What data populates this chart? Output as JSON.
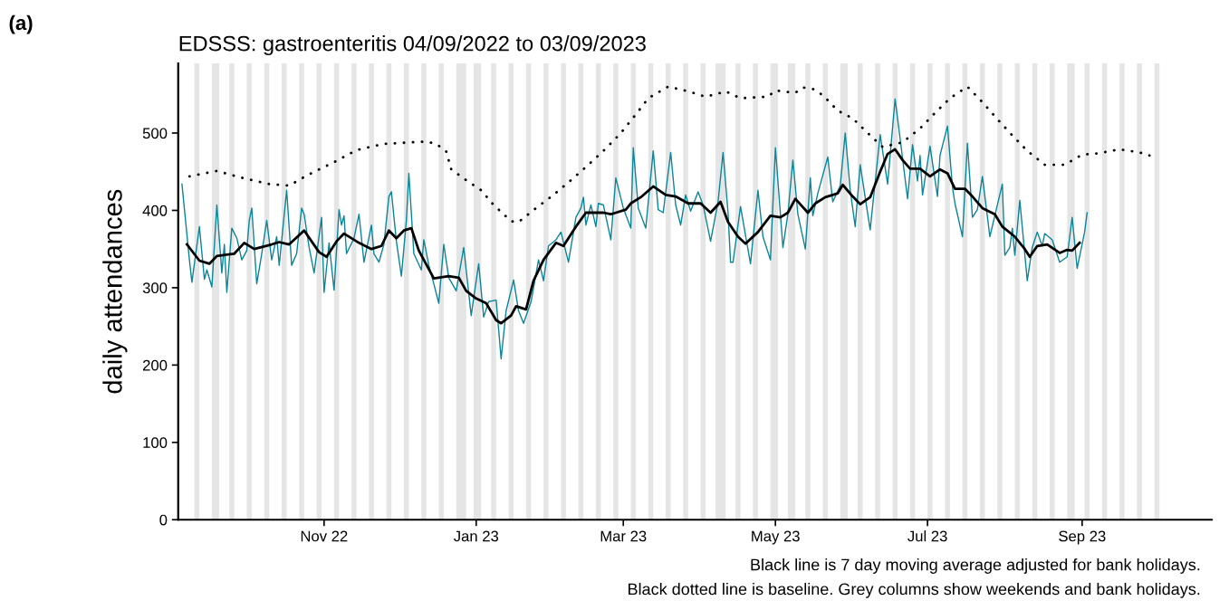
{
  "chart_data": {
    "type": "line",
    "title": "EDSSS: gastroenteritis 04/09/2022 to 03/09/2023",
    "ylabel": "daily attendances",
    "annotations": [
      "(a)",
      "Black line is 7 day moving average adjusted for bank holidays.",
      "Black dotted line is baseline. Grey columns show weekends and bank holidays."
    ],
    "xlim": [
      "2022-09-03T12:00",
      "2023-10-23"
    ],
    "xticks": [
      {
        "value": "2022-11-01",
        "label": "Nov 22"
      },
      {
        "value": "2023-01-01",
        "label": "Jan 23"
      },
      {
        "value": "2023-03-01",
        "label": "Mar 23"
      },
      {
        "value": "2023-05-01",
        "label": "May 23"
      },
      {
        "value": "2023-07-01",
        "label": "Jul 23"
      },
      {
        "value": "2023-09-01",
        "label": "Sep 23"
      }
    ],
    "ylim": [
      0,
      590
    ],
    "yticks": [
      0,
      100,
      200,
      300,
      400,
      500
    ],
    "grid": false,
    "series": [
      {
        "color": "#0a8599",
        "line_style": "solid",
        "x": [
          "2022-09-05",
          "2022-09-08",
          "2022-09-09",
          "2022-09-12",
          "2022-09-14",
          "2022-09-15",
          "2022-09-17",
          "2022-09-19",
          "2022-09-21",
          "2022-09-22",
          "2022-09-23",
          "2022-09-25",
          "2022-09-27",
          "2022-09-29",
          "2022-10-01",
          "2022-10-02",
          "2022-10-03",
          "2022-10-05",
          "2022-10-07",
          "2022-10-09",
          "2022-10-11",
          "2022-10-13",
          "2022-10-14",
          "2022-10-17",
          "2022-10-19",
          "2022-10-21",
          "2022-10-23",
          "2022-10-24",
          "2022-10-26",
          "2022-10-28",
          "2022-10-31",
          "2022-11-01",
          "2022-11-03",
          "2022-11-05",
          "2022-11-07",
          "2022-11-08",
          "2022-11-09",
          "2022-11-10",
          "2022-11-13",
          "2022-11-15",
          "2022-11-17",
          "2022-11-20",
          "2022-11-21",
          "2022-11-23",
          "2022-11-25",
          "2022-11-27",
          "2022-11-28",
          "2022-11-30",
          "2022-12-02",
          "2022-12-04",
          "2022-12-05",
          "2022-12-07",
          "2022-12-10",
          "2022-12-11",
          "2022-12-13",
          "2022-12-15",
          "2022-12-17",
          "2022-12-19",
          "2022-12-21",
          "2022-12-24",
          "2022-12-27",
          "2022-12-30",
          "2023-01-02",
          "2023-01-04",
          "2023-01-06",
          "2023-01-09",
          "2023-01-11",
          "2023-01-13",
          "2023-01-16",
          "2023-01-18",
          "2023-01-20",
          "2023-01-23",
          "2023-01-26",
          "2023-01-28",
          "2023-01-30",
          "2023-02-02",
          "2023-02-04",
          "2023-02-07",
          "2023-02-10",
          "2023-02-12",
          "2023-02-13",
          "2023-02-14",
          "2023-02-16",
          "2023-02-18",
          "2023-02-19",
          "2023-02-21",
          "2023-02-24",
          "2023-02-26",
          "2023-03-01",
          "2023-03-04",
          "2023-03-05",
          "2023-03-07",
          "2023-03-10",
          "2023-03-13",
          "2023-03-15",
          "2023-03-17",
          "2023-03-20",
          "2023-03-22",
          "2023-03-24",
          "2023-03-26",
          "2023-03-28",
          "2023-03-31",
          "2023-04-02",
          "2023-04-05",
          "2023-04-08",
          "2023-04-10",
          "2023-04-12",
          "2023-04-13",
          "2023-04-14",
          "2023-04-17",
          "2023-04-21",
          "2023-04-24",
          "2023-04-26",
          "2023-04-29",
          "2023-05-01",
          "2023-05-04",
          "2023-05-06",
          "2023-05-08",
          "2023-05-10",
          "2023-05-13",
          "2023-05-15",
          "2023-05-16",
          "2023-05-18",
          "2023-05-22",
          "2023-05-24",
          "2023-05-27",
          "2023-05-29",
          "2023-05-31",
          "2023-06-02",
          "2023-06-04",
          "2023-06-08",
          "2023-06-12",
          "2023-06-15",
          "2023-06-16",
          "2023-06-18",
          "2023-06-20",
          "2023-06-23",
          "2023-06-25",
          "2023-06-27",
          "2023-06-28",
          "2023-06-29",
          "2023-07-02",
          "2023-07-05",
          "2023-07-06",
          "2023-07-09",
          "2023-07-11",
          "2023-07-12",
          "2023-07-15",
          "2023-07-17",
          "2023-07-19",
          "2023-07-21",
          "2023-07-23",
          "2023-07-26",
          "2023-07-31",
          "2023-08-01",
          "2023-08-03",
          "2023-08-04",
          "2023-08-05",
          "2023-08-07",
          "2023-08-10",
          "2023-08-12",
          "2023-08-14",
          "2023-08-16",
          "2023-08-17",
          "2023-08-20",
          "2023-08-23",
          "2023-08-26",
          "2023-08-28",
          "2023-08-30",
          "2023-09-02",
          "2023-09-03"
        ],
        "values": [
          434,
          336,
          307,
          379,
          311,
          323,
          301,
          407,
          319,
          356,
          294,
          377,
          364,
          336,
          348,
          387,
          403,
          305,
          344,
          387,
          336,
          366,
          329,
          426,
          329,
          344,
          403,
          395,
          352,
          319,
          391,
          294,
          358,
          297,
          401,
          381,
          393,
          344,
          364,
          395,
          333,
          381,
          344,
          333,
          356,
          418,
          424,
          360,
          315,
          387,
          448,
          344,
          323,
          362,
          329,
          305,
          280,
          356,
          313,
          296,
          352,
          264,
          331,
          262,
          282,
          284,
          208,
          270,
          310,
          270,
          254,
          282,
          336,
          309,
          354,
          362,
          372,
          333,
          391,
          403,
          417,
          381,
          407,
          379,
          409,
          407,
          362,
          442,
          403,
          377,
          481,
          403,
          377,
          477,
          401,
          397,
          475,
          407,
          381,
          420,
          399,
          424,
          407,
          360,
          411,
          475,
          397,
          333,
          333,
          405,
          331,
          426,
          366,
          336,
          481,
          352,
          395,
          465,
          395,
          350,
          442,
          393,
          422,
          469,
          411,
          432,
          500,
          426,
          379,
          459,
          375,
          498,
          434,
          471,
          544,
          493,
          415,
          485,
          438,
          471,
          420,
          483,
          418,
          471,
          509,
          430,
          409,
          366,
          487,
          391,
          401,
          444,
          366,
          434,
          342,
          352,
          377,
          342,
          413,
          309,
          352,
          372,
          354,
          370,
          362,
          333,
          340,
          391,
          325,
          372,
          397
        ]
      },
      {
        "color": "#000000",
        "line_style": "solid",
        "x": [
          "2022-09-07",
          "2022-09-12",
          "2022-09-16",
          "2022-09-19",
          "2022-09-26",
          "2022-09-30",
          "2022-10-04",
          "2022-10-11",
          "2022-10-14",
          "2022-10-18",
          "2022-10-24",
          "2022-10-30",
          "2022-11-02",
          "2022-11-06",
          "2022-11-09",
          "2022-11-15",
          "2022-11-20",
          "2022-11-24",
          "2022-11-27",
          "2022-11-30",
          "2022-12-03",
          "2022-12-06",
          "2022-12-09",
          "2022-12-15",
          "2022-12-21",
          "2022-12-25",
          "2022-12-28",
          "2023-01-01",
          "2023-01-05",
          "2023-01-09",
          "2023-01-11",
          "2023-01-15",
          "2023-01-17",
          "2023-01-21",
          "2023-01-24",
          "2023-01-28",
          "2023-02-02",
          "2023-02-05",
          "2023-02-10",
          "2023-02-14",
          "2023-02-21",
          "2023-02-24",
          "2023-03-02",
          "2023-03-04",
          "2023-03-08",
          "2023-03-13",
          "2023-03-18",
          "2023-03-22",
          "2023-03-27",
          "2023-04-01",
          "2023-04-05",
          "2023-04-09",
          "2023-04-12",
          "2023-04-16",
          "2023-04-19",
          "2023-04-24",
          "2023-04-29",
          "2023-05-03",
          "2023-05-06",
          "2023-05-09",
          "2023-05-14",
          "2023-05-17",
          "2023-05-21",
          "2023-05-26",
          "2023-05-28",
          "2023-06-01",
          "2023-06-04",
          "2023-06-08",
          "2023-06-12",
          "2023-06-15",
          "2023-06-18",
          "2023-06-21",
          "2023-06-24",
          "2023-06-28",
          "2023-07-02",
          "2023-07-06",
          "2023-07-09",
          "2023-07-12",
          "2023-07-16",
          "2023-07-19",
          "2023-07-23",
          "2023-07-28",
          "2023-07-31",
          "2023-08-05",
          "2023-08-09",
          "2023-08-11",
          "2023-08-14",
          "2023-08-18",
          "2023-08-23",
          "2023-08-26",
          "2023-08-28",
          "2023-08-31"
        ],
        "values": [
          356,
          335,
          331,
          341,
          344,
          358,
          350,
          356,
          359,
          356,
          374,
          346,
          340,
          360,
          370,
          358,
          350,
          354,
          374,
          364,
          374,
          377,
          348,
          312,
          315,
          313,
          296,
          286,
          280,
          258,
          254,
          264,
          276,
          272,
          309,
          336,
          358,
          354,
          379,
          397,
          397,
          395,
          401,
          409,
          417,
          431,
          420,
          418,
          409,
          409,
          397,
          411,
          385,
          366,
          357,
          372,
          393,
          391,
          397,
          415,
          397,
          409,
          417,
          422,
          433,
          418,
          408,
          417,
          450,
          473,
          479,
          465,
          454,
          454,
          444,
          453,
          448,
          428,
          428,
          418,
          403,
          395,
          379,
          366,
          350,
          340,
          354,
          356,
          345,
          349,
          348,
          358
        ]
      },
      {
        "color": "#000000",
        "line_style": "dotted",
        "x": [
          "2022-09-08",
          "2022-09-19",
          "2022-09-28",
          "2022-10-10",
          "2022-10-18",
          "2022-10-25",
          "2022-11-06",
          "2022-11-14",
          "2022-11-25",
          "2022-12-12",
          "2022-12-16",
          "2022-12-20",
          "2022-12-22",
          "2022-12-28",
          "2023-01-03",
          "2023-01-08",
          "2023-01-15",
          "2023-01-18",
          "2023-01-25",
          "2023-02-01",
          "2023-02-08",
          "2023-02-15",
          "2023-02-22",
          "2023-02-28",
          "2023-03-06",
          "2023-03-11",
          "2023-03-19",
          "2023-03-27",
          "2023-04-03",
          "2023-04-08",
          "2023-04-11",
          "2023-04-17",
          "2023-04-28",
          "2023-05-01",
          "2023-05-09",
          "2023-05-12",
          "2023-05-16",
          "2023-05-20",
          "2023-05-26",
          "2023-06-01",
          "2023-06-07",
          "2023-06-13",
          "2023-06-21",
          "2023-06-28",
          "2023-07-04",
          "2023-07-10",
          "2023-07-17",
          "2023-07-23",
          "2023-07-29",
          "2023-08-04",
          "2023-08-10",
          "2023-08-17",
          "2023-08-25",
          "2023-09-01",
          "2023-09-08",
          "2023-09-16",
          "2023-09-24",
          "2023-09-28"
        ],
        "values": [
          444,
          451,
          443,
          434,
          432,
          445,
          464,
          478,
          486,
          489,
          486,
          476,
          453,
          439,
          426,
          407,
          386,
          385,
          403,
          420,
          439,
          459,
          480,
          500,
          524,
          545,
          560,
          554,
          547,
          551,
          554,
          545,
          547,
          555,
          552,
          559,
          557,
          549,
          529,
          519,
          500,
          482,
          488,
          506,
          526,
          545,
          560,
          540,
          518,
          497,
          477,
          459,
          459,
          472,
          474,
          479,
          475,
          471
        ]
      }
    ],
    "bands": [
      {
        "axis": "x",
        "from": "2022-09-10",
        "to": "2022-09-12",
        "color": "#e5e5e5"
      },
      {
        "axis": "x",
        "from": "2022-09-17",
        "to": "2022-09-20",
        "color": "#e5e5e5"
      },
      {
        "axis": "x",
        "from": "2022-09-24",
        "to": "2022-09-26",
        "color": "#e5e5e5"
      },
      {
        "axis": "x",
        "from": "2022-10-01",
        "to": "2022-10-03",
        "color": "#e5e5e5"
      },
      {
        "axis": "x",
        "from": "2022-10-08",
        "to": "2022-10-10",
        "color": "#e5e5e5"
      },
      {
        "axis": "x",
        "from": "2022-10-15",
        "to": "2022-10-17",
        "color": "#e5e5e5"
      },
      {
        "axis": "x",
        "from": "2022-10-22",
        "to": "2022-10-24",
        "color": "#e5e5e5"
      },
      {
        "axis": "x",
        "from": "2022-10-29",
        "to": "2022-10-31",
        "color": "#e5e5e5"
      },
      {
        "axis": "x",
        "from": "2022-11-05",
        "to": "2022-11-07",
        "color": "#e5e5e5"
      },
      {
        "axis": "x",
        "from": "2022-11-12",
        "to": "2022-11-14",
        "color": "#e5e5e5"
      },
      {
        "axis": "x",
        "from": "2022-11-19",
        "to": "2022-11-21",
        "color": "#e5e5e5"
      },
      {
        "axis": "x",
        "from": "2022-11-26",
        "to": "2022-11-28",
        "color": "#e5e5e5"
      },
      {
        "axis": "x",
        "from": "2022-12-03",
        "to": "2022-12-05",
        "color": "#e5e5e5"
      },
      {
        "axis": "x",
        "from": "2022-12-10",
        "to": "2022-12-12",
        "color": "#e5e5e5"
      },
      {
        "axis": "x",
        "from": "2022-12-17",
        "to": "2022-12-19",
        "color": "#e5e5e5"
      },
      {
        "axis": "x",
        "from": "2022-12-24",
        "to": "2022-12-28",
        "color": "#e5e5e5"
      },
      {
        "axis": "x",
        "from": "2022-12-31",
        "to": "2023-01-03",
        "color": "#e5e5e5"
      },
      {
        "axis": "x",
        "from": "2023-01-07",
        "to": "2023-01-09",
        "color": "#e5e5e5"
      },
      {
        "axis": "x",
        "from": "2023-01-14",
        "to": "2023-01-16",
        "color": "#e5e5e5"
      },
      {
        "axis": "x",
        "from": "2023-01-21",
        "to": "2023-01-23",
        "color": "#e5e5e5"
      },
      {
        "axis": "x",
        "from": "2023-01-28",
        "to": "2023-01-30",
        "color": "#e5e5e5"
      },
      {
        "axis": "x",
        "from": "2023-02-04",
        "to": "2023-02-06",
        "color": "#e5e5e5"
      },
      {
        "axis": "x",
        "from": "2023-02-11",
        "to": "2023-02-13",
        "color": "#e5e5e5"
      },
      {
        "axis": "x",
        "from": "2023-02-18",
        "to": "2023-02-20",
        "color": "#e5e5e5"
      },
      {
        "axis": "x",
        "from": "2023-02-25",
        "to": "2023-02-27",
        "color": "#e5e5e5"
      },
      {
        "axis": "x",
        "from": "2023-03-04",
        "to": "2023-03-06",
        "color": "#e5e5e5"
      },
      {
        "axis": "x",
        "from": "2023-03-11",
        "to": "2023-03-13",
        "color": "#e5e5e5"
      },
      {
        "axis": "x",
        "from": "2023-03-18",
        "to": "2023-03-20",
        "color": "#e5e5e5"
      },
      {
        "axis": "x",
        "from": "2023-03-25",
        "to": "2023-03-27",
        "color": "#e5e5e5"
      },
      {
        "axis": "x",
        "from": "2023-04-01",
        "to": "2023-04-03",
        "color": "#e5e5e5"
      },
      {
        "axis": "x",
        "from": "2023-04-07",
        "to": "2023-04-11",
        "color": "#e5e5e5"
      },
      {
        "axis": "x",
        "from": "2023-04-15",
        "to": "2023-04-17",
        "color": "#e5e5e5"
      },
      {
        "axis": "x",
        "from": "2023-04-22",
        "to": "2023-04-24",
        "color": "#e5e5e5"
      },
      {
        "axis": "x",
        "from": "2023-04-29",
        "to": "2023-05-02",
        "color": "#e5e5e5"
      },
      {
        "axis": "x",
        "from": "2023-05-06",
        "to": "2023-05-09",
        "color": "#e5e5e5"
      },
      {
        "axis": "x",
        "from": "2023-05-13",
        "to": "2023-05-15",
        "color": "#e5e5e5"
      },
      {
        "axis": "x",
        "from": "2023-05-20",
        "to": "2023-05-22",
        "color": "#e5e5e5"
      },
      {
        "axis": "x",
        "from": "2023-05-27",
        "to": "2023-05-30",
        "color": "#e5e5e5"
      },
      {
        "axis": "x",
        "from": "2023-06-03",
        "to": "2023-06-05",
        "color": "#e5e5e5"
      },
      {
        "axis": "x",
        "from": "2023-06-10",
        "to": "2023-06-12",
        "color": "#e5e5e5"
      },
      {
        "axis": "x",
        "from": "2023-06-17",
        "to": "2023-06-19",
        "color": "#e5e5e5"
      },
      {
        "axis": "x",
        "from": "2023-06-24",
        "to": "2023-06-26",
        "color": "#e5e5e5"
      },
      {
        "axis": "x",
        "from": "2023-07-01",
        "to": "2023-07-03",
        "color": "#e5e5e5"
      },
      {
        "axis": "x",
        "from": "2023-07-08",
        "to": "2023-07-10",
        "color": "#e5e5e5"
      },
      {
        "axis": "x",
        "from": "2023-07-15",
        "to": "2023-07-17",
        "color": "#e5e5e5"
      },
      {
        "axis": "x",
        "from": "2023-07-22",
        "to": "2023-07-24",
        "color": "#e5e5e5"
      },
      {
        "axis": "x",
        "from": "2023-07-29",
        "to": "2023-07-31",
        "color": "#e5e5e5"
      },
      {
        "axis": "x",
        "from": "2023-08-05",
        "to": "2023-08-07",
        "color": "#e5e5e5"
      },
      {
        "axis": "x",
        "from": "2023-08-12",
        "to": "2023-08-14",
        "color": "#e5e5e5"
      },
      {
        "axis": "x",
        "from": "2023-08-19",
        "to": "2023-08-21",
        "color": "#e5e5e5"
      },
      {
        "axis": "x",
        "from": "2023-08-26",
        "to": "2023-08-29",
        "color": "#e5e5e5"
      },
      {
        "axis": "x",
        "from": "2023-09-02",
        "to": "2023-09-04",
        "color": "#e5e5e5"
      },
      {
        "axis": "x",
        "from": "2023-09-09",
        "to": "2023-09-11",
        "color": "#e5e5e5"
      },
      {
        "axis": "x",
        "from": "2023-09-16",
        "to": "2023-09-18",
        "color": "#e5e5e5"
      },
      {
        "axis": "x",
        "from": "2023-09-23",
        "to": "2023-09-25",
        "color": "#e5e5e5"
      },
      {
        "axis": "x",
        "from": "2023-09-30",
        "to": "2023-10-02",
        "color": "#e5e5e5"
      }
    ]
  }
}
